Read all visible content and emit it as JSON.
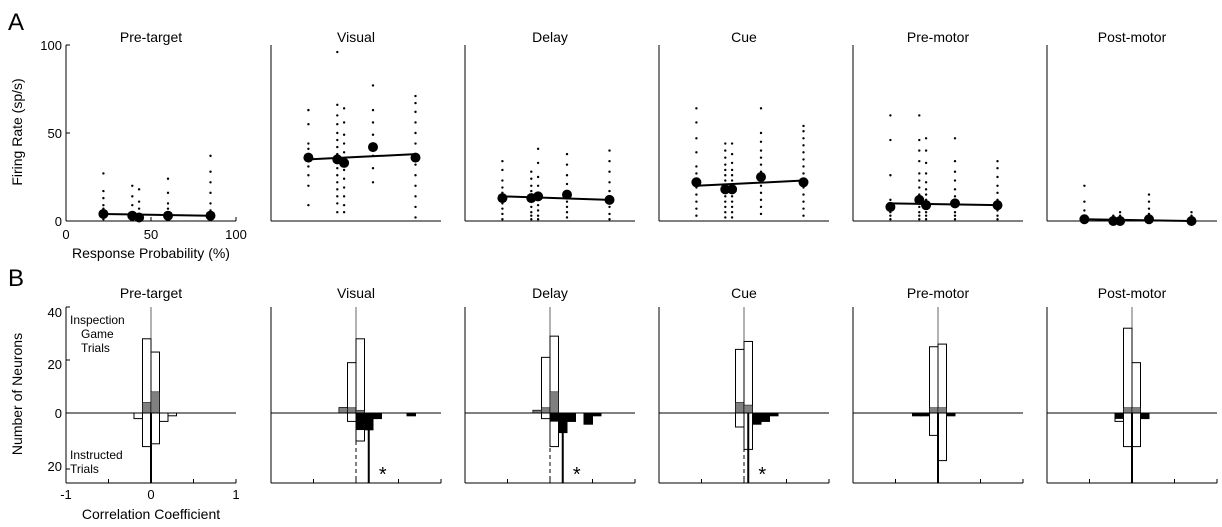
{
  "figure": {
    "panel_A_letter": "A",
    "panel_B_letter": "B",
    "a_ylabel": "Firing Rate (sp/s)",
    "a_xlabel": "Response Probability (%)",
    "a_yticks": [
      "0",
      "50",
      "100"
    ],
    "a_xticks": [
      "0",
      "50",
      "100"
    ],
    "b_ylabel": "Number of Neurons",
    "b_xlabel": "Correlation Coefficient",
    "b_yticks": [
      "40",
      "20",
      "0",
      "20"
    ],
    "b_xticks": [
      "-1",
      "0",
      "1"
    ],
    "label_top_1": "Inspection",
    "label_top_2": "Game",
    "label_top_3": "Trials",
    "label_bottom_1": "Instructed",
    "label_bottom_2": "Trials",
    "star": "*"
  },
  "colors": {
    "axis": "#000000",
    "open_bar": "#ffffff",
    "gray_bar": "#808080",
    "black_bar": "#000000",
    "median_line": "#666666"
  },
  "chart_data": [
    {
      "type": "scatter",
      "panel": "A",
      "xlabel": "Response Probability (%)",
      "ylabel": "Firing Rate (sp/s)",
      "xlim": [
        0,
        100
      ],
      "ylim": [
        0,
        100
      ],
      "epochs": [
        {
          "title": "Pre-target",
          "means": [
            [
              22,
              4
            ],
            [
              39,
              3
            ],
            [
              43,
              2
            ],
            [
              60,
              3
            ],
            [
              85,
              3
            ]
          ],
          "fit": [
            [
              22,
              4
            ],
            [
              85,
              3
            ]
          ],
          "trials": [
            [
              22,
              [
                1,
                2,
                3,
                4,
                5,
                7,
                9,
                13,
                17,
                27
              ]
            ],
            [
              39,
              [
                1,
                2,
                3,
                5,
                9,
                14,
                20
              ]
            ],
            [
              43,
              [
                1,
                2,
                4,
                7,
                11,
                18
              ]
            ],
            [
              60,
              [
                1,
                2,
                3,
                5,
                7,
                10,
                16,
                24
              ]
            ],
            [
              85,
              [
                1,
                2,
                4,
                6,
                10,
                16,
                22,
                28,
                37
              ]
            ]
          ]
        },
        {
          "title": "Visual",
          "means": [
            [
              22,
              36
            ],
            [
              39,
              35
            ],
            [
              43,
              33
            ],
            [
              60,
              42
            ],
            [
              85,
              36
            ]
          ],
          "fit": [
            [
              22,
              35
            ],
            [
              85,
              38
            ]
          ],
          "trials": [
            [
              22,
              [
                9,
                20,
                26,
                31,
                36,
                38,
                41,
                44,
                55,
                63
              ]
            ],
            [
              39,
              [
                5,
                10,
                14,
                18,
                22,
                26,
                30,
                34,
                38,
                42,
                46,
                50,
                55,
                60,
                66,
                96
              ]
            ],
            [
              43,
              [
                5,
                9,
                14,
                19,
                24,
                29,
                34,
                39,
                44,
                49,
                56,
                64
              ]
            ],
            [
              60,
              [
                22,
                30,
                37,
                43,
                49,
                56,
                63,
                77
              ]
            ],
            [
              85,
              [
                2,
                8,
                14,
                20,
                26,
                32,
                38,
                44,
                50,
                56,
                62,
                67,
                71
              ]
            ]
          ]
        },
        {
          "title": "Delay",
          "means": [
            [
              22,
              13
            ],
            [
              39,
              13
            ],
            [
              43,
              14
            ],
            [
              60,
              15
            ],
            [
              85,
              12
            ]
          ],
          "fit": [
            [
              22,
              14
            ],
            [
              85,
              12
            ]
          ],
          "trials": [
            [
              22,
              [
                1,
                4,
                7,
                10,
                13,
                16,
                19,
                23,
                29,
                34
              ]
            ],
            [
              39,
              [
                1,
                3,
                5,
                8,
                11,
                14,
                17,
                20,
                24,
                28
              ]
            ],
            [
              43,
              [
                1,
                3,
                6,
                9,
                12,
                16,
                20,
                25,
                33,
                41
              ]
            ],
            [
              60,
              [
                2,
                5,
                8,
                11,
                14,
                17,
                21,
                26,
                32,
                38
              ]
            ],
            [
              85,
              [
                1,
                4,
                8,
                12,
                17,
                22,
                28,
                34,
                40
              ]
            ]
          ]
        },
        {
          "title": "Cue",
          "means": [
            [
              22,
              22
            ],
            [
              39,
              18
            ],
            [
              43,
              18
            ],
            [
              60,
              25
            ],
            [
              85,
              22
            ]
          ],
          "fit": [
            [
              22,
              20
            ],
            [
              85,
              23
            ]
          ],
          "trials": [
            [
              22,
              [
                3,
                7,
                11,
                15,
                19,
                23,
                27,
                31,
                39,
                47,
                56,
                64
              ]
            ],
            [
              39,
              [
                2,
                5,
                8,
                11,
                14,
                17,
                20,
                23,
                26,
                29,
                32,
                36,
                40,
                44
              ]
            ],
            [
              43,
              [
                2,
                5,
                8,
                11,
                14,
                17,
                20,
                23,
                26,
                29,
                33,
                38,
                44
              ]
            ],
            [
              60,
              [
                4,
                8,
                12,
                16,
                20,
                24,
                28,
                32,
                36,
                40,
                45,
                50,
                64
              ]
            ],
            [
              85,
              [
                3,
                7,
                11,
                15,
                19,
                23,
                27,
                31,
                35,
                39,
                43,
                47,
                51,
                54
              ]
            ]
          ]
        },
        {
          "title": "Pre-motor",
          "means": [
            [
              22,
              8
            ],
            [
              39,
              12
            ],
            [
              43,
              9
            ],
            [
              60,
              10
            ],
            [
              85,
              9
            ]
          ],
          "fit": [
            [
              22,
              10
            ],
            [
              85,
              9
            ]
          ],
          "trials": [
            [
              22,
              [
                1,
                3,
                5,
                7,
                9,
                12,
                26,
                46,
                60
              ]
            ],
            [
              39,
              [
                1,
                3,
                5,
                8,
                11,
                15,
                19,
                23,
                27,
                34,
                40,
                46,
                60
              ]
            ],
            [
              43,
              [
                1,
                3,
                5,
                7,
                9,
                12,
                15,
                18,
                22,
                27,
                33,
                40,
                47
              ]
            ],
            [
              60,
              [
                1,
                3,
                5,
                8,
                11,
                14,
                18,
                23,
                28,
                34,
                47
              ]
            ],
            [
              85,
              [
                1,
                3,
                6,
                9,
                12,
                16,
                20,
                25,
                30,
                34
              ]
            ]
          ]
        },
        {
          "title": "Post-motor",
          "means": [
            [
              22,
              1
            ],
            [
              39,
              0
            ],
            [
              43,
              0
            ],
            [
              60,
              1
            ],
            [
              85,
              0
            ]
          ],
          "fit": [
            [
              22,
              1
            ],
            [
              85,
              0
            ]
          ],
          "trials": [
            [
              22,
              [
                0,
                1,
                2,
                3,
                6,
                11,
                20
              ]
            ],
            [
              39,
              [
                0,
                1,
                2,
                3
              ]
            ],
            [
              43,
              [
                0,
                1,
                2,
                3,
                5
              ]
            ],
            [
              60,
              [
                0,
                1,
                2,
                4,
                7,
                11,
                15
              ]
            ],
            [
              85,
              [
                0,
                1,
                2,
                3,
                5
              ]
            ]
          ]
        }
      ]
    },
    {
      "type": "bar",
      "panel": "B",
      "xlabel": "Correlation Coefficient",
      "ylabel": "Number of Neurons",
      "xlim": [
        -1,
        1
      ],
      "ylim": [
        -25,
        40
      ],
      "bin_width": 0.1,
      "epochs": [
        {
          "title": "Pre-target",
          "inspection": [
            [
              -0.05,
              28,
              4
            ],
            [
              0.05,
              23,
              8
            ]
          ],
          "instructed": [
            [
              -0.15,
              2,
              0
            ],
            [
              -0.05,
              12,
              0
            ],
            [
              0.05,
              11,
              0
            ],
            [
              0.15,
              3,
              0
            ],
            [
              0.25,
              1,
              0
            ]
          ],
          "median_inspection": 0.0,
          "median_instructed": 0.0,
          "significant": false
        },
        {
          "title": "Visual",
          "inspection": [
            [
              -0.15,
              2,
              2
            ],
            [
              -0.05,
              19,
              2
            ],
            [
              0.05,
              28,
              1
            ]
          ],
          "instructed": [
            [
              -0.05,
              3,
              0
            ],
            [
              0.05,
              10,
              6
            ],
            [
              0.15,
              6,
              6
            ],
            [
              0.25,
              2,
              2
            ],
            [
              0.65,
              1,
              1
            ]
          ],
          "median_inspection": 0.0,
          "median_instructed": 0.15,
          "significant": true
        },
        {
          "title": "Delay",
          "inspection": [
            [
              -0.15,
              1,
              1
            ],
            [
              -0.05,
              21,
              2
            ],
            [
              0.05,
              29,
              8
            ]
          ],
          "instructed": [
            [
              -0.05,
              2,
              0
            ],
            [
              0.05,
              12,
              3
            ],
            [
              0.15,
              7,
              7
            ],
            [
              0.25,
              3,
              3
            ],
            [
              0.45,
              4,
              4
            ],
            [
              0.55,
              1,
              1
            ]
          ],
          "median_inspection": 0.0,
          "median_instructed": 0.15,
          "significant": true
        },
        {
          "title": "Cue",
          "inspection": [
            [
              -0.05,
              24,
              4
            ],
            [
              0.05,
              27,
              3
            ]
          ],
          "instructed": [
            [
              -0.05,
              5,
              0
            ],
            [
              0.05,
              13,
              0
            ],
            [
              0.15,
              4,
              4
            ],
            [
              0.25,
              3,
              3
            ],
            [
              0.35,
              1,
              1
            ]
          ],
          "median_inspection": 0.0,
          "median_instructed": 0.05,
          "significant": true
        },
        {
          "title": "Pre-motor",
          "inspection": [
            [
              -0.05,
              25,
              2
            ],
            [
              0.05,
              26,
              2
            ]
          ],
          "instructed": [
            [
              -0.25,
              1,
              1
            ],
            [
              -0.15,
              1,
              1
            ],
            [
              -0.05,
              8,
              0
            ],
            [
              0.05,
              17,
              0
            ],
            [
              0.15,
              1,
              1
            ]
          ],
          "median_inspection": 0.0,
          "median_instructed": 0.0,
          "significant": false
        },
        {
          "title": "Post-motor",
          "inspection": [
            [
              -0.05,
              32,
              2
            ],
            [
              0.05,
              19,
              2
            ]
          ],
          "instructed": [
            [
              -0.15,
              3,
              2
            ],
            [
              -0.05,
              12,
              0
            ],
            [
              0.05,
              12,
              0
            ],
            [
              0.15,
              2,
              2
            ]
          ],
          "median_inspection": 0.0,
          "median_instructed": 0.0,
          "significant": false
        }
      ]
    }
  ]
}
